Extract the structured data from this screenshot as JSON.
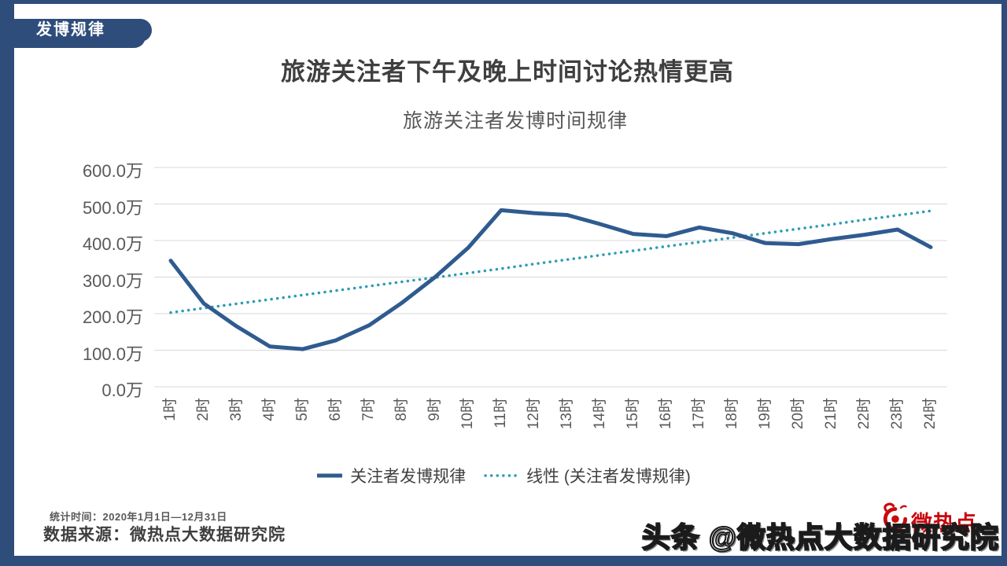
{
  "page": {
    "badge": "发博规律",
    "title": "旅游关注者下午及晚上时间讨论热情更高",
    "subtitle": "旅游关注者发博时间规律",
    "footer": {
      "stat_time": "统计时间：2020年1月1日—12月31日",
      "data_source": "数据来源：微热点大数据研究院"
    },
    "watermark": "头条 @微热点大数据研究院",
    "logo_text": "微热点"
  },
  "colors": {
    "frame_blue": "#2E4D7B",
    "series_solid": "#2F5B8F",
    "series_trend": "#2D9DB4",
    "gridline": "#D9D9D9",
    "axis_text": "#595959",
    "title_text": "#3F3F3F",
    "logo_red": "#C9090E"
  },
  "chart_data": {
    "type": "line",
    "title": "旅游关注者发博时间规律",
    "categories": [
      "1时",
      "2时",
      "3时",
      "4时",
      "5时",
      "6时",
      "7时",
      "8时",
      "9时",
      "10时",
      "11时",
      "12时",
      "13时",
      "14时",
      "15时",
      "16时",
      "17时",
      "18时",
      "19时",
      "20时",
      "21时",
      "22时",
      "23时",
      "24时"
    ],
    "series": [
      {
        "name": "关注者发博规律",
        "style": "solid",
        "color": "#2F5B8F",
        "values": [
          345,
          228,
          165,
          110,
          103,
          127,
          168,
          230,
          300,
          380,
          483,
          475,
          470,
          445,
          418,
          412,
          436,
          420,
          393,
          390,
          404,
          416,
          430,
          382
        ]
      },
      {
        "name": "线性 (关注者发博规律)",
        "style": "dotted",
        "color": "#2D9DB4",
        "values": [
          203,
          215,
          227,
          239,
          251,
          263,
          275,
          287,
          299,
          311,
          323,
          336,
          348,
          360,
          372,
          384,
          396,
          408,
          420,
          432,
          444,
          457,
          469,
          481
        ]
      }
    ],
    "unit": "万",
    "ylim": [
      0,
      600
    ],
    "y_ticks": [
      "600.0万",
      "500.0万",
      "400.0万",
      "300.0万",
      "200.0万",
      "100.0万",
      "0.0万"
    ],
    "grid": true,
    "legend_position": "bottom"
  }
}
